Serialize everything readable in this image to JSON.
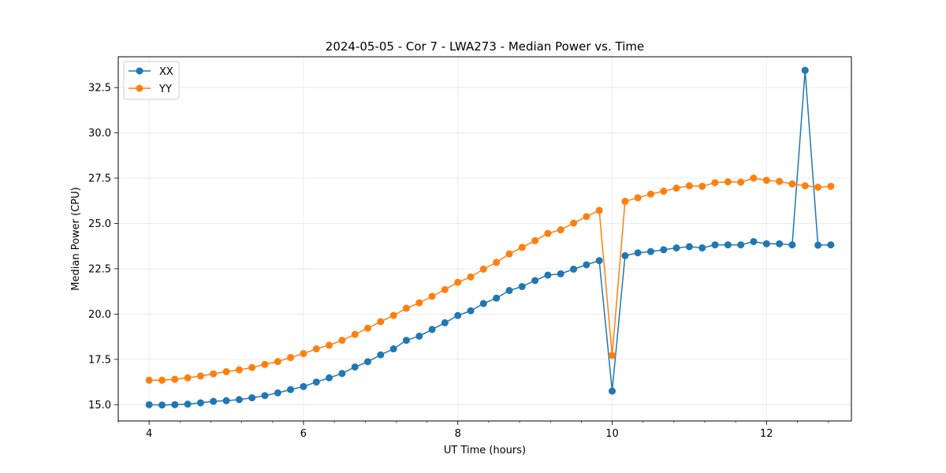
{
  "chart_data": {
    "type": "line",
    "title": "2024-05-05 - Cor 7 - LWA273 - Median Power vs. Time",
    "xlabel": "UT Time (hours)",
    "ylabel": "Median Power (CPU)",
    "xlim": [
      3.6,
      13.1
    ],
    "ylim": [
      14.1,
      34.2
    ],
    "xticks": [
      4,
      6,
      8,
      10,
      12
    ],
    "xtick_labels": [
      "4",
      "6",
      "8",
      "10",
      "12"
    ],
    "yticks": [
      15.0,
      17.5,
      20.0,
      22.5,
      25.0,
      27.5,
      30.0,
      32.5
    ],
    "ytick_labels": [
      "15.0",
      "17.5",
      "20.0",
      "22.5",
      "25.0",
      "27.5",
      "30.0",
      "32.5"
    ],
    "grid": true,
    "legend_position": "top-left",
    "x": [
      4.0,
      4.167,
      4.333,
      4.5,
      4.667,
      4.833,
      5.0,
      5.167,
      5.333,
      5.5,
      5.667,
      5.833,
      6.0,
      6.167,
      6.333,
      6.5,
      6.667,
      6.833,
      7.0,
      7.167,
      7.333,
      7.5,
      7.667,
      7.833,
      8.0,
      8.167,
      8.333,
      8.5,
      8.667,
      8.833,
      9.0,
      9.167,
      9.333,
      9.5,
      9.667,
      9.833,
      10.0,
      10.167,
      10.333,
      10.5,
      10.667,
      10.833,
      11.0,
      11.167,
      11.333,
      11.5,
      11.667,
      11.833,
      12.0,
      12.167,
      12.333,
      12.5,
      12.667,
      12.833
    ],
    "series": [
      {
        "name": "XX",
        "color": "#1f77b4",
        "values": [
          15.0,
          14.98,
          15.0,
          15.03,
          15.1,
          15.18,
          15.22,
          15.28,
          15.38,
          15.5,
          15.65,
          15.83,
          16.0,
          16.25,
          16.48,
          16.72,
          17.08,
          17.37,
          17.75,
          18.08,
          18.55,
          18.78,
          19.15,
          19.52,
          19.92,
          20.18,
          20.58,
          20.88,
          21.3,
          21.52,
          21.85,
          22.15,
          22.22,
          22.48,
          22.72,
          22.95,
          15.75,
          23.22,
          23.38,
          23.45,
          23.55,
          23.65,
          23.72,
          23.65,
          23.82,
          23.82,
          23.82,
          24.0,
          23.88,
          23.88,
          23.82,
          33.45,
          23.8,
          23.82
        ]
      },
      {
        "name": "YY",
        "color": "#ff7f0e",
        "values": [
          16.35,
          16.35,
          16.4,
          16.48,
          16.58,
          16.7,
          16.82,
          16.92,
          17.05,
          17.22,
          17.38,
          17.6,
          17.82,
          18.08,
          18.28,
          18.55,
          18.88,
          19.22,
          19.58,
          19.92,
          20.32,
          20.62,
          20.98,
          21.35,
          21.75,
          22.05,
          22.48,
          22.85,
          23.32,
          23.68,
          24.05,
          24.45,
          24.65,
          25.02,
          25.38,
          25.72,
          17.72,
          26.22,
          26.42,
          26.62,
          26.78,
          26.95,
          27.08,
          27.05,
          27.25,
          27.3,
          27.28,
          27.5,
          27.38,
          27.32,
          27.18,
          27.08,
          27.0,
          27.05
        ]
      }
    ]
  }
}
